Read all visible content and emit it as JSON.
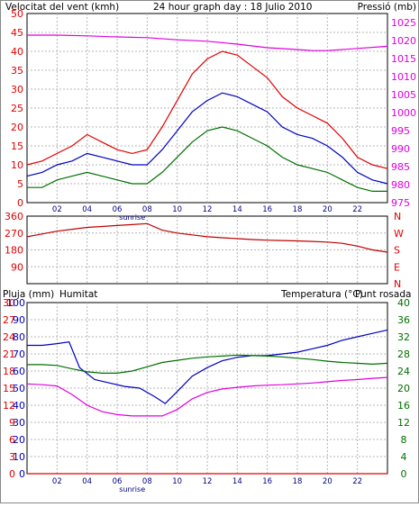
{
  "colors": {
    "red": "#e00000",
    "blue": "#0000c0",
    "green": "#007000",
    "magenta": "#e000e0",
    "darkred": "#c00000",
    "grid": "#b4b4b4"
  },
  "chart_data": [
    {
      "type": "line",
      "title": "24 hour graph day : 18 Julio 2010",
      "left_axis_label": "Velocitat del vent (kmh)",
      "right_axis_label": "Pressió (mb)",
      "x_ticks": [
        "02",
        "04",
        "06",
        "08",
        "10",
        "12",
        "14",
        "16",
        "18",
        "20",
        "22"
      ],
      "sunrise_label": "sunrise",
      "sunrise_hour": 7,
      "left_ticks": [
        0,
        5,
        10,
        15,
        20,
        25,
        30,
        35,
        40,
        45,
        50
      ],
      "right_ticks": [
        975,
        980,
        985,
        990,
        995,
        1000,
        1005,
        1010,
        1015,
        1020,
        1025
      ],
      "ylim": [
        0,
        50
      ],
      "ylim_right": [
        975,
        1027.5
      ],
      "grid": true,
      "series": [
        {
          "axis": "left",
          "color": "red",
          "x": [
            0,
            1,
            2,
            3,
            4,
            5,
            6,
            7,
            8,
            9,
            10,
            11,
            12,
            13,
            14,
            15,
            16,
            17,
            18,
            19,
            20,
            21,
            22,
            23,
            24
          ],
          "y": [
            10,
            11,
            13,
            15,
            18,
            16,
            14,
            13,
            14,
            20,
            27,
            34,
            38,
            40,
            39,
            36,
            33,
            28,
            25,
            23,
            21,
            17,
            12,
            10,
            9
          ]
        },
        {
          "axis": "left",
          "color": "blue",
          "x": [
            0,
            1,
            2,
            3,
            4,
            5,
            6,
            7,
            8,
            9,
            10,
            11,
            12,
            13,
            14,
            15,
            16,
            17,
            18,
            19,
            20,
            21,
            22,
            23,
            24
          ],
          "y": [
            7,
            8,
            10,
            11,
            13,
            12,
            11,
            10,
            10,
            14,
            19,
            24,
            27,
            29,
            28,
            26,
            24,
            20,
            18,
            17,
            15,
            12,
            8,
            6,
            5
          ]
        },
        {
          "axis": "left",
          "color": "green",
          "x": [
            0,
            1,
            2,
            3,
            4,
            5,
            6,
            7,
            8,
            9,
            10,
            11,
            12,
            13,
            14,
            15,
            16,
            17,
            18,
            19,
            20,
            21,
            22,
            23,
            24
          ],
          "y": [
            4,
            4,
            6,
            7,
            8,
            7,
            6,
            5,
            5,
            8,
            12,
            16,
            19,
            20,
            19,
            17,
            15,
            12,
            10,
            9,
            8,
            6,
            4,
            3,
            3
          ]
        },
        {
          "axis": "right",
          "color": "magenta",
          "x": [
            0,
            2,
            4,
            6,
            8,
            10,
            12,
            14,
            16,
            18,
            19,
            20,
            22,
            24
          ],
          "y": [
            1021.5,
            1021.5,
            1021.3,
            1021.0,
            1020.8,
            1020.2,
            1019.8,
            1019.0,
            1018.0,
            1017.5,
            1017.2,
            1017.2,
            1017.8,
            1018.4
          ]
        }
      ]
    },
    {
      "type": "scatter",
      "left_ticks": [
        90,
        180,
        270,
        360
      ],
      "right_direction_labels": [
        "N",
        "W",
        "S",
        "E",
        "N"
      ],
      "ylim": [
        0,
        360
      ],
      "grid": true,
      "series": [
        {
          "color": "darkred",
          "x": [
            0,
            1,
            2,
            3,
            4,
            5,
            6,
            7,
            8,
            9,
            10,
            11,
            12,
            13,
            14,
            15,
            16,
            17,
            18,
            19,
            20,
            21,
            22,
            23,
            24
          ],
          "y": [
            250,
            265,
            280,
            290,
            300,
            305,
            310,
            315,
            320,
            285,
            270,
            260,
            250,
            245,
            240,
            235,
            232,
            230,
            228,
            225,
            222,
            215,
            200,
            180,
            168
          ]
        }
      ]
    },
    {
      "type": "line",
      "left_axis_label_1": "Pluja (mm)",
      "left_axis_label_2": "Humitat",
      "right_axis_label_1": "Temperatura (°C)",
      "right_axis_label_2": "Punt rosada",
      "x_ticks": [
        "02",
        "04",
        "06",
        "08",
        "10",
        "12",
        "14",
        "16",
        "18",
        "20",
        "22"
      ],
      "sunrise_label": "sunrise",
      "sunrise_hour": 7,
      "rain_ticks": [
        0,
        3,
        6,
        9,
        12,
        15,
        18,
        21,
        24,
        27,
        30
      ],
      "humidity_ticks": [
        0,
        10,
        20,
        30,
        40,
        50,
        60,
        70,
        80,
        90,
        100
      ],
      "temp_ticks": [
        0,
        4,
        8,
        12,
        16,
        20,
        24,
        28,
        32,
        36,
        40
      ],
      "ylim_rain": [
        0,
        30
      ],
      "ylim_humidity": [
        0,
        100
      ],
      "ylim_temp": [
        0,
        40
      ],
      "grid": true,
      "series": [
        {
          "name": "Humitat",
          "axis": "humidity",
          "color": "blue",
          "x": [
            0,
            1,
            2,
            2.8,
            3.5,
            4.5,
            5.5,
            6.5,
            7.5,
            8.5,
            9.2,
            10,
            11,
            12,
            13,
            14,
            15,
            16,
            17,
            18,
            19,
            20,
            21,
            22,
            23,
            24
          ],
          "y": [
            75,
            75,
            76,
            77,
            62,
            55,
            53,
            51,
            50,
            45,
            41,
            48,
            57,
            62,
            66,
            68,
            69,
            69,
            70,
            71,
            73,
            75,
            78,
            80,
            82,
            84
          ]
        },
        {
          "name": "Temperatura (°C)",
          "axis": "temp",
          "color": "green",
          "x": [
            0,
            1,
            2,
            3,
            4,
            5,
            6,
            7,
            8,
            9,
            10,
            11,
            12,
            13,
            14,
            15,
            16,
            17,
            18,
            19,
            20,
            21,
            22,
            23,
            24
          ],
          "y": [
            25.5,
            25.5,
            25.3,
            24.5,
            23.8,
            23.5,
            23.5,
            24.0,
            25.0,
            26.0,
            26.5,
            27.0,
            27.3,
            27.5,
            27.7,
            27.6,
            27.5,
            27.3,
            27.0,
            26.7,
            26.3,
            26.0,
            25.8,
            25.6,
            25.8
          ]
        },
        {
          "name": "Punt rosada",
          "axis": "temp",
          "color": "magenta",
          "x": [
            0,
            1,
            2,
            3,
            4,
            5,
            6,
            7,
            8,
            9,
            10,
            11,
            12,
            13,
            14,
            15,
            16,
            17,
            18,
            19,
            20,
            21,
            22,
            23,
            24
          ],
          "y": [
            21.0,
            20.8,
            20.5,
            18.5,
            16.0,
            14.5,
            13.8,
            13.5,
            13.5,
            13.5,
            15.0,
            17.5,
            19.0,
            19.8,
            20.2,
            20.5,
            20.7,
            20.8,
            21.0,
            21.2,
            21.5,
            21.8,
            22.0,
            22.3,
            22.5
          ]
        },
        {
          "name": "Pluja (mm)",
          "axis": "rain",
          "color": "red",
          "x": [
            0,
            24
          ],
          "y": [
            0,
            0
          ]
        }
      ]
    }
  ]
}
